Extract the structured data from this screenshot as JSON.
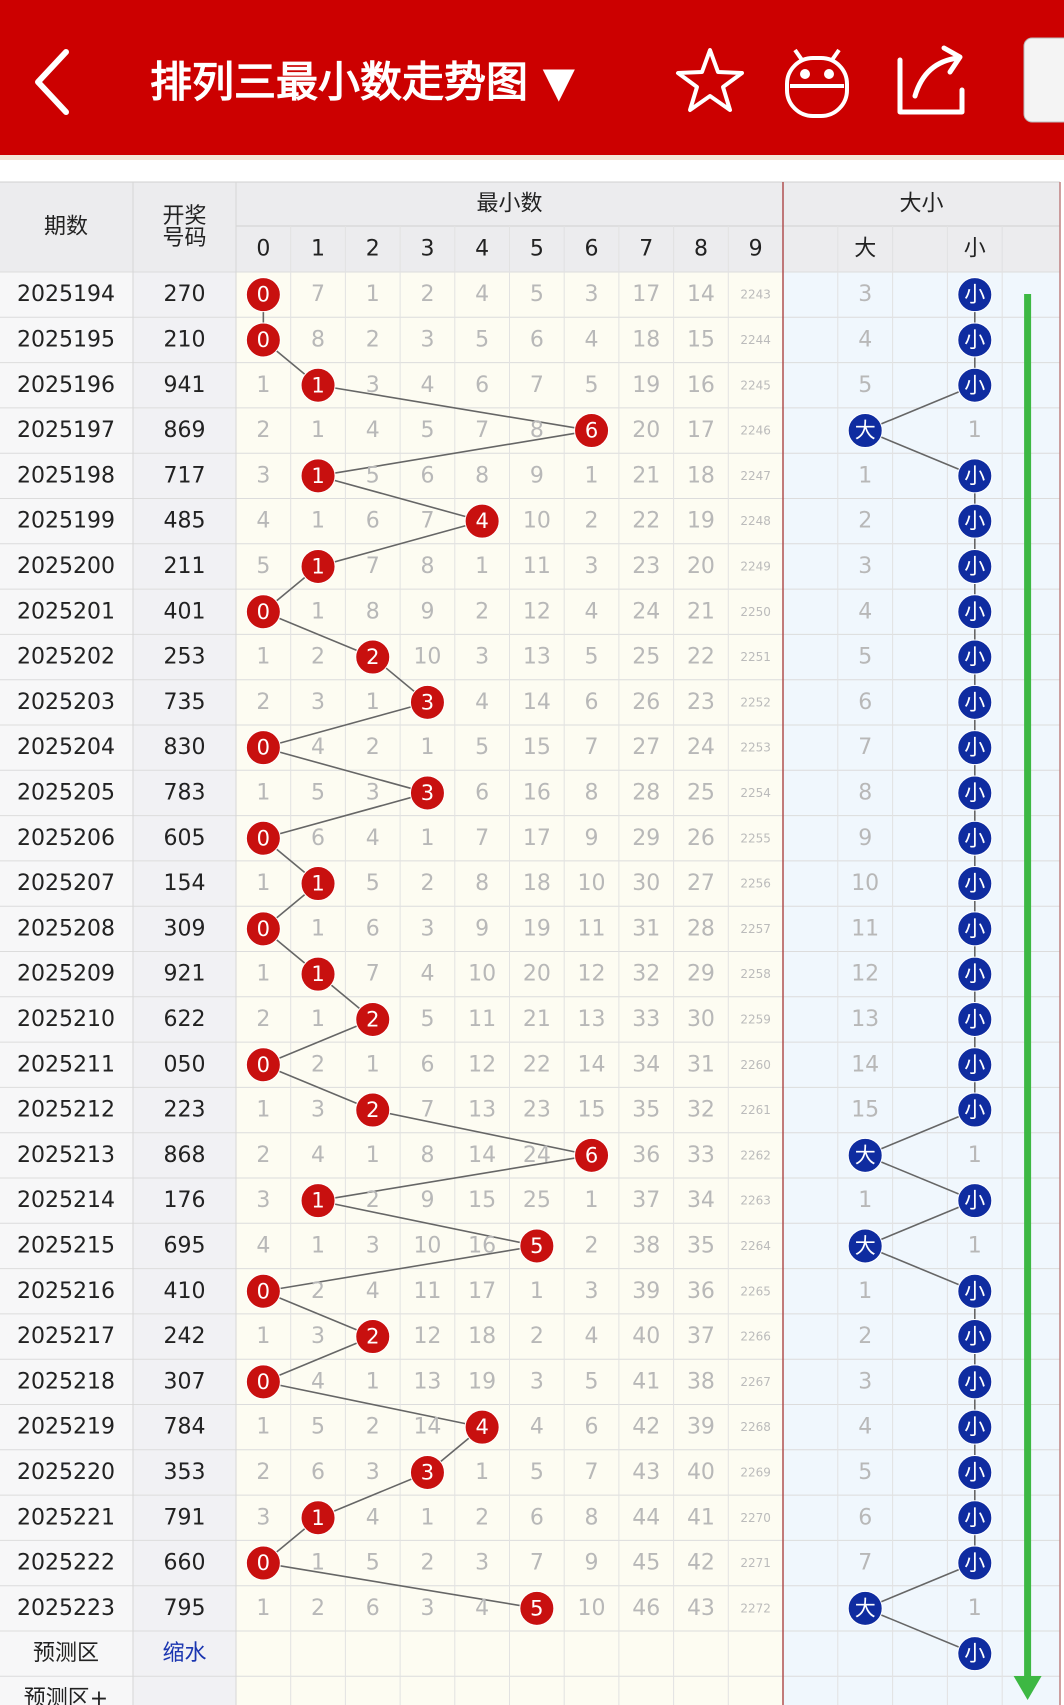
{
  "header": {
    "title": "排列三最小数走势图 ▼"
  },
  "table": {
    "col_period": "期数",
    "col_number": "开奖号码",
    "group_min": "最小数",
    "group_size": "大小",
    "digits": [
      0,
      1,
      2,
      3,
      4,
      5,
      6,
      7,
      8,
      9
    ],
    "size_big": "大",
    "size_small": "小",
    "rows": [
      {
        "period": "2025194",
        "number": "270",
        "cells": [
          0,
          7,
          1,
          2,
          4,
          5,
          3,
          17,
          14,
          2243
        ],
        "big": 3,
        "small": "小"
      },
      {
        "period": "2025195",
        "number": "210",
        "cells": [
          0,
          8,
          2,
          3,
          5,
          6,
          4,
          18,
          15,
          2244
        ],
        "big": 4,
        "small": "小"
      },
      {
        "period": "2025196",
        "number": "941",
        "cells": [
          1,
          1,
          3,
          4,
          6,
          7,
          5,
          19,
          16,
          2245
        ],
        "big": 5,
        "small": "小"
      },
      {
        "period": "2025197",
        "number": "869",
        "cells": [
          2,
          1,
          4,
          5,
          7,
          8,
          6,
          20,
          17,
          2246
        ],
        "big": "大",
        "small": 1
      },
      {
        "period": "2025198",
        "number": "717",
        "cells": [
          3,
          1,
          5,
          6,
          8,
          9,
          1,
          21,
          18,
          2247
        ],
        "big": 1,
        "small": "小"
      },
      {
        "period": "2025199",
        "number": "485",
        "cells": [
          4,
          1,
          6,
          7,
          4,
          10,
          2,
          22,
          19,
          2248
        ],
        "big": 2,
        "small": "小"
      },
      {
        "period": "2025200",
        "number": "211",
        "cells": [
          5,
          1,
          7,
          8,
          1,
          11,
          3,
          23,
          20,
          2249
        ],
        "big": 3,
        "small": "小"
      },
      {
        "period": "2025201",
        "number": "401",
        "cells": [
          0,
          1,
          8,
          9,
          2,
          12,
          4,
          24,
          21,
          2250
        ],
        "big": 4,
        "small": "小"
      },
      {
        "period": "2025202",
        "number": "253",
        "cells": [
          1,
          2,
          2,
          10,
          3,
          13,
          5,
          25,
          22,
          2251
        ],
        "big": 5,
        "small": "小"
      },
      {
        "period": "2025203",
        "number": "735",
        "cells": [
          2,
          3,
          1,
          3,
          4,
          14,
          6,
          26,
          23,
          2252
        ],
        "big": 6,
        "small": "小"
      },
      {
        "period": "2025204",
        "number": "830",
        "cells": [
          0,
          4,
          2,
          1,
          5,
          15,
          7,
          27,
          24,
          2253
        ],
        "big": 7,
        "small": "小"
      },
      {
        "period": "2025205",
        "number": "783",
        "cells": [
          1,
          5,
          3,
          3,
          6,
          16,
          8,
          28,
          25,
          2254
        ],
        "big": 8,
        "small": "小"
      },
      {
        "period": "2025206",
        "number": "605",
        "cells": [
          0,
          6,
          4,
          1,
          7,
          17,
          9,
          29,
          26,
          2255
        ],
        "big": 9,
        "small": "小"
      },
      {
        "period": "2025207",
        "number": "154",
        "cells": [
          1,
          1,
          5,
          2,
          8,
          18,
          10,
          30,
          27,
          2256
        ],
        "big": 10,
        "small": "小"
      },
      {
        "period": "2025208",
        "number": "309",
        "cells": [
          0,
          1,
          6,
          3,
          9,
          19,
          11,
          31,
          28,
          2257
        ],
        "big": 11,
        "small": "小"
      },
      {
        "period": "2025209",
        "number": "921",
        "cells": [
          1,
          1,
          7,
          4,
          10,
          20,
          12,
          32,
          29,
          2258
        ],
        "big": 12,
        "small": "小"
      },
      {
        "period": "2025210",
        "number": "622",
        "cells": [
          2,
          1,
          2,
          5,
          11,
          21,
          13,
          33,
          30,
          2259
        ],
        "big": 13,
        "small": "小"
      },
      {
        "period": "2025211",
        "number": "050",
        "cells": [
          0,
          2,
          1,
          6,
          12,
          22,
          14,
          34,
          31,
          2260
        ],
        "big": 14,
        "small": "小"
      },
      {
        "period": "2025212",
        "number": "223",
        "cells": [
          1,
          3,
          2,
          7,
          13,
          23,
          15,
          35,
          32,
          2261
        ],
        "big": 15,
        "small": "小"
      },
      {
        "period": "2025213",
        "number": "868",
        "cells": [
          2,
          4,
          1,
          8,
          14,
          24,
          6,
          36,
          33,
          2262
        ],
        "big": "大",
        "small": 1
      },
      {
        "period": "2025214",
        "number": "176",
        "cells": [
          3,
          1,
          2,
          9,
          15,
          25,
          1,
          37,
          34,
          2263
        ],
        "big": 1,
        "small": "小"
      },
      {
        "period": "2025215",
        "number": "695",
        "cells": [
          4,
          1,
          3,
          10,
          16,
          5,
          2,
          38,
          35,
          2264
        ],
        "big": "大",
        "small": 1
      },
      {
        "period": "2025216",
        "number": "410",
        "cells": [
          0,
          2,
          4,
          11,
          17,
          1,
          3,
          39,
          36,
          2265
        ],
        "big": 1,
        "small": "小"
      },
      {
        "period": "2025217",
        "number": "242",
        "cells": [
          1,
          3,
          2,
          12,
          18,
          2,
          4,
          40,
          37,
          2266
        ],
        "big": 2,
        "small": "小"
      },
      {
        "period": "2025218",
        "number": "307",
        "cells": [
          0,
          4,
          1,
          13,
          19,
          3,
          5,
          41,
          38,
          2267
        ],
        "big": 3,
        "small": "小"
      },
      {
        "period": "2025219",
        "number": "784",
        "cells": [
          1,
          5,
          2,
          14,
          4,
          4,
          6,
          42,
          39,
          2268
        ],
        "big": 4,
        "small": "小"
      },
      {
        "period": "2025220",
        "number": "353",
        "cells": [
          2,
          6,
          3,
          3,
          1,
          5,
          7,
          43,
          40,
          2269
        ],
        "big": 5,
        "small": "小"
      },
      {
        "period": "2025221",
        "number": "791",
        "cells": [
          3,
          1,
          4,
          1,
          2,
          6,
          8,
          44,
          41,
          2270
        ],
        "big": 6,
        "small": "小"
      },
      {
        "period": "2025222",
        "number": "660",
        "cells": [
          0,
          1,
          5,
          2,
          3,
          7,
          9,
          45,
          42,
          2271
        ],
        "big": 7,
        "small": "小"
      },
      {
        "period": "2025223",
        "number": "795",
        "cells": [
          1,
          2,
          6,
          3,
          4,
          5,
          10,
          46,
          43,
          2272
        ],
        "big": "大",
        "small": 1
      }
    ],
    "predict": {
      "label": "预测区",
      "number": "缩水",
      "small": "小"
    },
    "predict_plus": {
      "label": "预测区+"
    }
  }
}
